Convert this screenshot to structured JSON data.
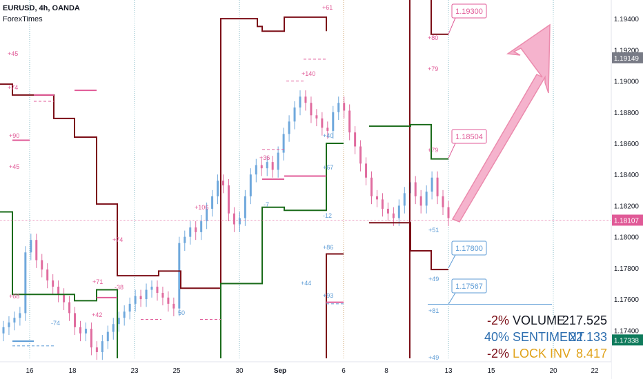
{
  "header": {
    "title": "EURUSD, 4h, OANDA",
    "subtitle": "ForexTimes"
  },
  "colors": {
    "up": "#6fa8dc",
    "down": "#e06c9f",
    "level_dark": "#7b0d16",
    "level_green": "#1a6b1a",
    "pink": "#e05a97",
    "blue": "#5c9bd5",
    "arrow_fill": "#f4a6c5",
    "arrow_stroke": "#e8779f",
    "green_tag": "#0f7b5c",
    "grey_tag": "#787b86"
  },
  "chart_data": {
    "type": "candlestick",
    "x_ticks": [
      "16",
      "18",
      "23",
      "25",
      "30",
      "Sep",
      "6",
      "8",
      "13",
      "15",
      "20",
      "22"
    ],
    "y_ticks": [
      "1.19400",
      "1.19200",
      "1.19000",
      "1.18800",
      "1.18600",
      "1.18400",
      "1.18200",
      "1.18000",
      "1.17800",
      "1.17600",
      "1.17400"
    ],
    "ylim": [
      1.1722,
      1.1952
    ],
    "price_tags": [
      {
        "value": "1.19149",
        "price": 1.19149,
        "kind": "grey"
      },
      {
        "value": "1.18107",
        "price": 1.18107,
        "kind": "pink"
      },
      {
        "value": "1.17338",
        "price": 1.17338,
        "kind": "green"
      }
    ],
    "callouts": [
      {
        "label": "1.19300",
        "price": 1.193,
        "kind": "pink"
      },
      {
        "label": "1.18504",
        "price": 1.18504,
        "kind": "pink"
      },
      {
        "label": "1.17800",
        "price": 1.178,
        "kind": "blue"
      },
      {
        "label": "1.17567",
        "price": 1.17567,
        "kind": "blue"
      }
    ],
    "annotations": [
      {
        "text": "+45",
        "kind": "pink"
      },
      {
        "text": "+74",
        "kind": "pink"
      },
      {
        "text": "+90",
        "kind": "pink"
      },
      {
        "text": "+45",
        "kind": "pink"
      },
      {
        "text": "+68",
        "kind": "pink"
      },
      {
        "text": "-74",
        "kind": "blue"
      },
      {
        "text": "+42",
        "kind": "pink"
      },
      {
        "text": "+71",
        "kind": "pink"
      },
      {
        "text": "-38",
        "kind": "pink"
      },
      {
        "text": "+74",
        "kind": "pink"
      },
      {
        "text": "50",
        "kind": "blue"
      },
      {
        "text": "+106",
        "kind": "pink"
      },
      {
        "text": "+36",
        "kind": "pink"
      },
      {
        "text": "-7",
        "kind": "blue"
      },
      {
        "text": "+140",
        "kind": "pink"
      },
      {
        "text": "+61",
        "kind": "pink"
      },
      {
        "text": "+40",
        "kind": "blue"
      },
      {
        "text": "+67",
        "kind": "blue"
      },
      {
        "text": "-12",
        "kind": "blue"
      },
      {
        "text": "+86",
        "kind": "blue"
      },
      {
        "text": "+44",
        "kind": "blue"
      },
      {
        "text": "+93",
        "kind": "blue"
      },
      {
        "text": "+80",
        "kind": "pink"
      },
      {
        "text": "+79",
        "kind": "pink"
      },
      {
        "text": "+79",
        "kind": "pink"
      },
      {
        "text": "+51",
        "kind": "blue"
      },
      {
        "text": "+49",
        "kind": "blue"
      },
      {
        "text": "+81",
        "kind": "blue"
      },
      {
        "text": "+49",
        "kind": "blue"
      }
    ]
  },
  "stats": [
    {
      "pct": "-2%",
      "label": "VOLUME",
      "value": "217.525",
      "pct_color": "#7b0d16",
      "label_color": "#131722",
      "value_color": "#131722"
    },
    {
      "pct": "40%",
      "label": "SENTIMENT",
      "value": "22.133",
      "pct_color": "#2e6fb0",
      "label_color": "#2e6fb0",
      "value_color": "#2e6fb0"
    },
    {
      "pct": "-2%",
      "label": "LOCK INV",
      "value": "8.417",
      "pct_color": "#7b0d16",
      "label_color": "#e0a21a",
      "value_color": "#e0a21a"
    }
  ]
}
